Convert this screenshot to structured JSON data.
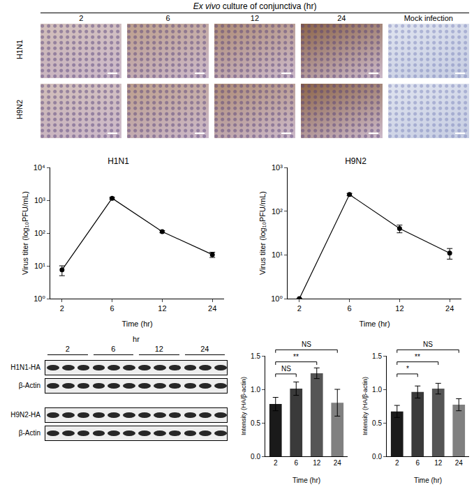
{
  "micrographs": {
    "title": "Ex vivo culture of conjunctiva (hr)",
    "columns": [
      "2",
      "6",
      "12",
      "24",
      "Mock infection"
    ],
    "rows": [
      "H1N1",
      "H9N2"
    ]
  },
  "chart_data": [
    {
      "type": "line",
      "title": "H1N1",
      "x_label": "Time (hr)",
      "y_label": "Virus titer (log₁₀PFU/mL)",
      "categories": [
        "2",
        "6",
        "12",
        "24"
      ],
      "values": [
        7.5,
        1150,
        110,
        22
      ],
      "errors": [
        2.5,
        80,
        8,
        4
      ],
      "log": "y",
      "ylim": [
        1,
        10000
      ],
      "yticks": [
        {
          "value": 1,
          "label": "10⁰"
        },
        {
          "value": 10,
          "label": "10¹"
        },
        {
          "value": 100,
          "label": "10²"
        },
        {
          "value": 1000,
          "label": "10³"
        },
        {
          "value": 10000,
          "label": "10⁴"
        }
      ],
      "color": "#000000",
      "marker": "circle"
    },
    {
      "type": "line",
      "title": "H9N2",
      "x_label": "Time (hr)",
      "y_label": "Virus titer (log₁₀PFU/mL)",
      "categories": [
        "2",
        "6",
        "12",
        "24"
      ],
      "values": [
        1,
        240,
        40,
        11
      ],
      "errors": [
        0,
        15,
        8,
        3
      ],
      "log": "y",
      "ylim": [
        1,
        1000
      ],
      "yticks": [
        {
          "value": 1,
          "label": "10⁰"
        },
        {
          "value": 10,
          "label": "10¹"
        },
        {
          "value": 100,
          "label": "10²"
        },
        {
          "value": 1000,
          "label": "10³"
        }
      ],
      "color": "#000000",
      "marker": "circle"
    },
    {
      "type": "bar",
      "x_label": "Time (hr)",
      "y_label": "Intensity (HA/β-actin)",
      "categories": [
        "2",
        "6",
        "12",
        "24"
      ],
      "values": [
        0.78,
        1.01,
        1.24,
        0.8
      ],
      "errors": [
        0.1,
        0.1,
        0.08,
        0.2
      ],
      "colors": [
        "#1a1a1a",
        "#3a3a3a",
        "#555555",
        "#808080"
      ],
      "ylim": [
        0,
        1.5
      ],
      "yticks": [
        {
          "value": 0,
          "label": "0.0"
        },
        0.5,
        {
          "value": 1,
          "label": "1.0"
        },
        1.5
      ],
      "comparisons": [
        {
          "from": "2",
          "to": "6",
          "label": "NS"
        },
        {
          "from": "2",
          "to": "12",
          "label": "**"
        },
        {
          "from": "2",
          "to": "24",
          "label": "NS"
        }
      ]
    },
    {
      "type": "bar",
      "x_label": "Time (hr)",
      "y_label": "Intensity (HA/β-actin)",
      "categories": [
        "2",
        "6",
        "12",
        "24"
      ],
      "values": [
        0.67,
        0.96,
        1.01,
        0.77
      ],
      "errors": [
        0.09,
        0.09,
        0.08,
        0.09
      ],
      "colors": [
        "#1a1a1a",
        "#3a3a3a",
        "#555555",
        "#808080"
      ],
      "ylim": [
        0,
        1.5
      ],
      "yticks": [
        {
          "value": 0,
          "label": "0.0"
        },
        0.5,
        {
          "value": 1,
          "label": "1.0"
        },
        1.5
      ],
      "comparisons": [
        {
          "from": "2",
          "to": "6",
          "label": "*"
        },
        {
          "from": "2",
          "to": "12",
          "label": "**"
        },
        {
          "from": "2",
          "to": "24",
          "label": "NS"
        }
      ]
    }
  ],
  "western_blot": {
    "time_label": "hr",
    "times": [
      "2",
      "6",
      "12",
      "24"
    ],
    "rows": [
      "H1N1-HA",
      "β-Actin",
      "H9N2-HA",
      "β-Actin"
    ]
  }
}
